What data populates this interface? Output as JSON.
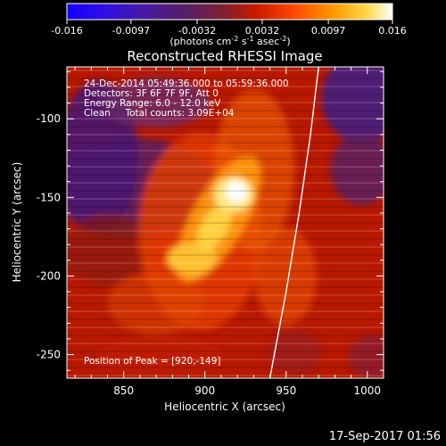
{
  "chart_data": {
    "type": "heatmap",
    "title": "Reconstructed RHESSI Image",
    "xlabel": "Heliocentric X (arcsec)",
    "ylabel": "Heliocentric Y (arcsec)",
    "xlim": [
      815,
      1010
    ],
    "ylim": [
      -265,
      -67
    ],
    "x_ticks": [
      850,
      900,
      950,
      1000
    ],
    "y_ticks": [
      -100,
      -150,
      -200,
      -250
    ],
    "colorbar": {
      "ticks": [
        "-0.016",
        "-0.0097",
        "-0.0032",
        "0.0032",
        "0.0097",
        "0.016"
      ],
      "min": -0.016,
      "max": 0.016,
      "unit_label": "(photons cm",
      "unit_exp1": "-2",
      "unit_mid": " s",
      "unit_exp2": "-1",
      "unit_mid2": " asec",
      "unit_exp3": "-2",
      "unit_close": ")"
    },
    "annotations": [
      "24-Dec-2014 05:49:36.000 to 05:59:36.000",
      "Detectors: 3F 6F 7F 9F, Att 0",
      "Energy Range: 6.0 - 12.0 keV",
      "Clean     Total counts: 3.09E+04"
    ],
    "peak_label": "Position of Peak = [920,-149]",
    "peak": [
      920,
      -149
    ],
    "limb_curve": [
      [
        940,
        -265
      ],
      [
        950,
        -210
      ],
      [
        958,
        -160
      ],
      [
        965,
        -110
      ],
      [
        970,
        -67
      ]
    ],
    "colors": {
      "scale": [
        "#1a00ff",
        "#4a1fc0",
        "#6a2a8a",
        "#8a2a3a",
        "#c01a00",
        "#e04000",
        "#ff8000",
        "#ffc800",
        "#ffffff"
      ],
      "limb": "#ffffff"
    }
  },
  "footer": {
    "date": "17-Sep-2017 01:56"
  }
}
